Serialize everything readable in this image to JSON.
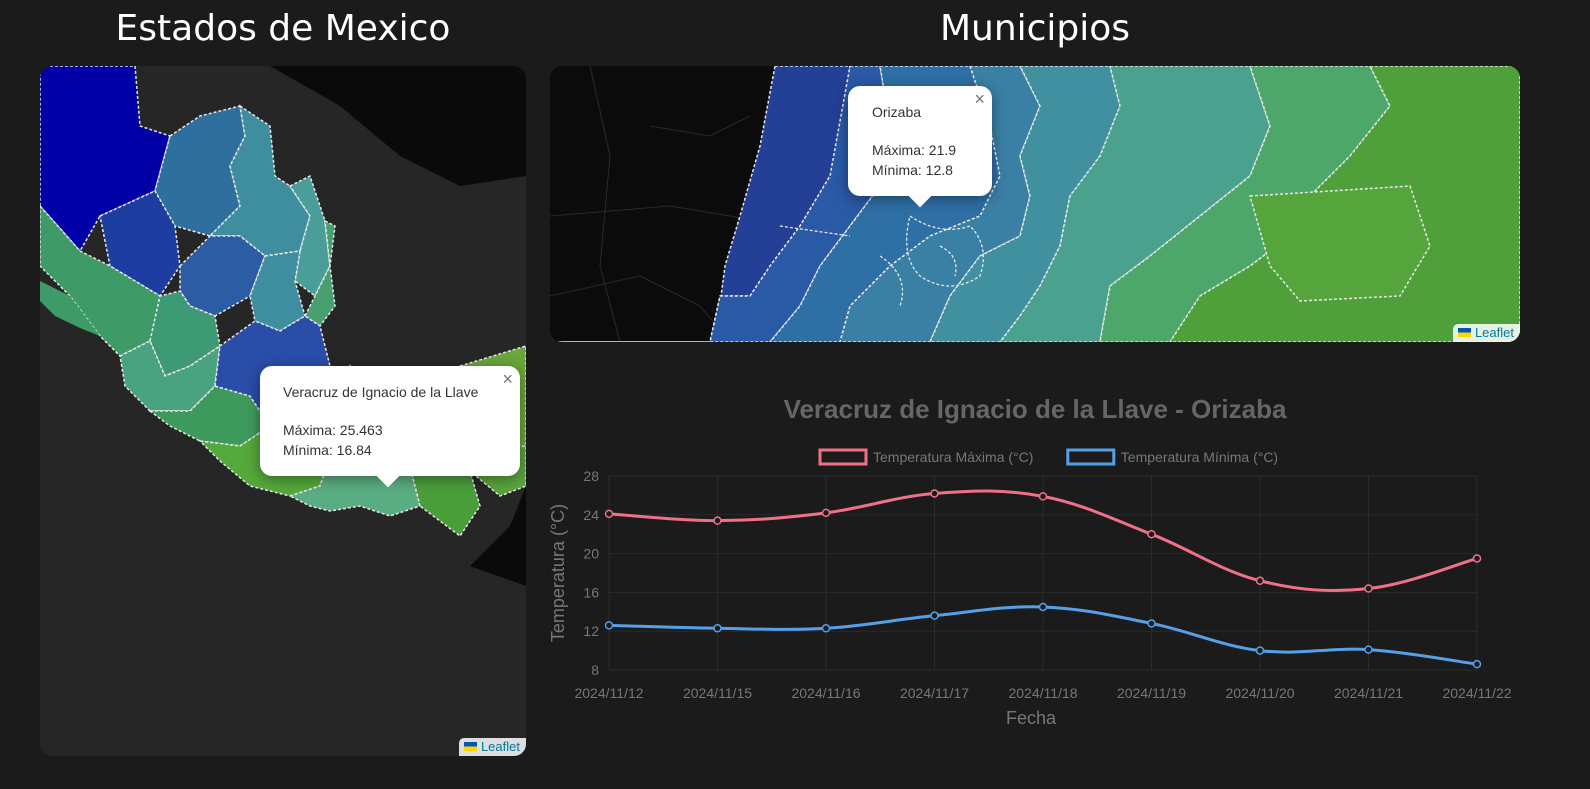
{
  "headings": {
    "states": "Estados de Mexico",
    "municipalities": "Municipios"
  },
  "states_map": {
    "popup": {
      "name": "Veracruz de Ignacio de la Llave",
      "max_label": "Máxima: 25.463",
      "min_label": "Mínima: 16.84"
    },
    "attribution": "Leaflet"
  },
  "municipal_map": {
    "popup": {
      "name": "Orizaba",
      "max_label": "Máxima: 21.9",
      "min_label": "Mínima: 12.8"
    },
    "attribution": "Leaflet"
  },
  "icons": {
    "close": "close-icon",
    "flag": "ukraine-flag-icon"
  },
  "close_glyph": "×",
  "colors": {
    "background": "#1b1b1b",
    "max_series": "#f0708a",
    "min_series": "#55a0e8"
  },
  "chart_data": {
    "type": "line",
    "title": "Veracruz de Ignacio de la Llave - Orizaba",
    "xlabel": "Fecha",
    "ylabel": "Temperatura (°C)",
    "categories": [
      "2024/11/12",
      "2024/11/15",
      "2024/11/16",
      "2024/11/17",
      "2024/11/18",
      "2024/11/19",
      "2024/11/20",
      "2024/11/21",
      "2024/11/22"
    ],
    "series": [
      {
        "name": "Temperatura Máxima (°C)",
        "color": "#f0708a",
        "values": [
          24.1,
          23.4,
          24.2,
          26.2,
          25.9,
          22.0,
          17.2,
          16.4,
          19.5
        ]
      },
      {
        "name": "Temperatura Mínima (°C)",
        "color": "#55a0e8",
        "values": [
          12.6,
          12.3,
          12.3,
          13.6,
          14.5,
          12.8,
          10.0,
          10.1,
          8.6
        ]
      }
    ],
    "yticks": [
      8,
      12,
      16,
      20,
      24,
      28
    ],
    "ylim": [
      8,
      28
    ],
    "grid": true,
    "legend": "top"
  }
}
